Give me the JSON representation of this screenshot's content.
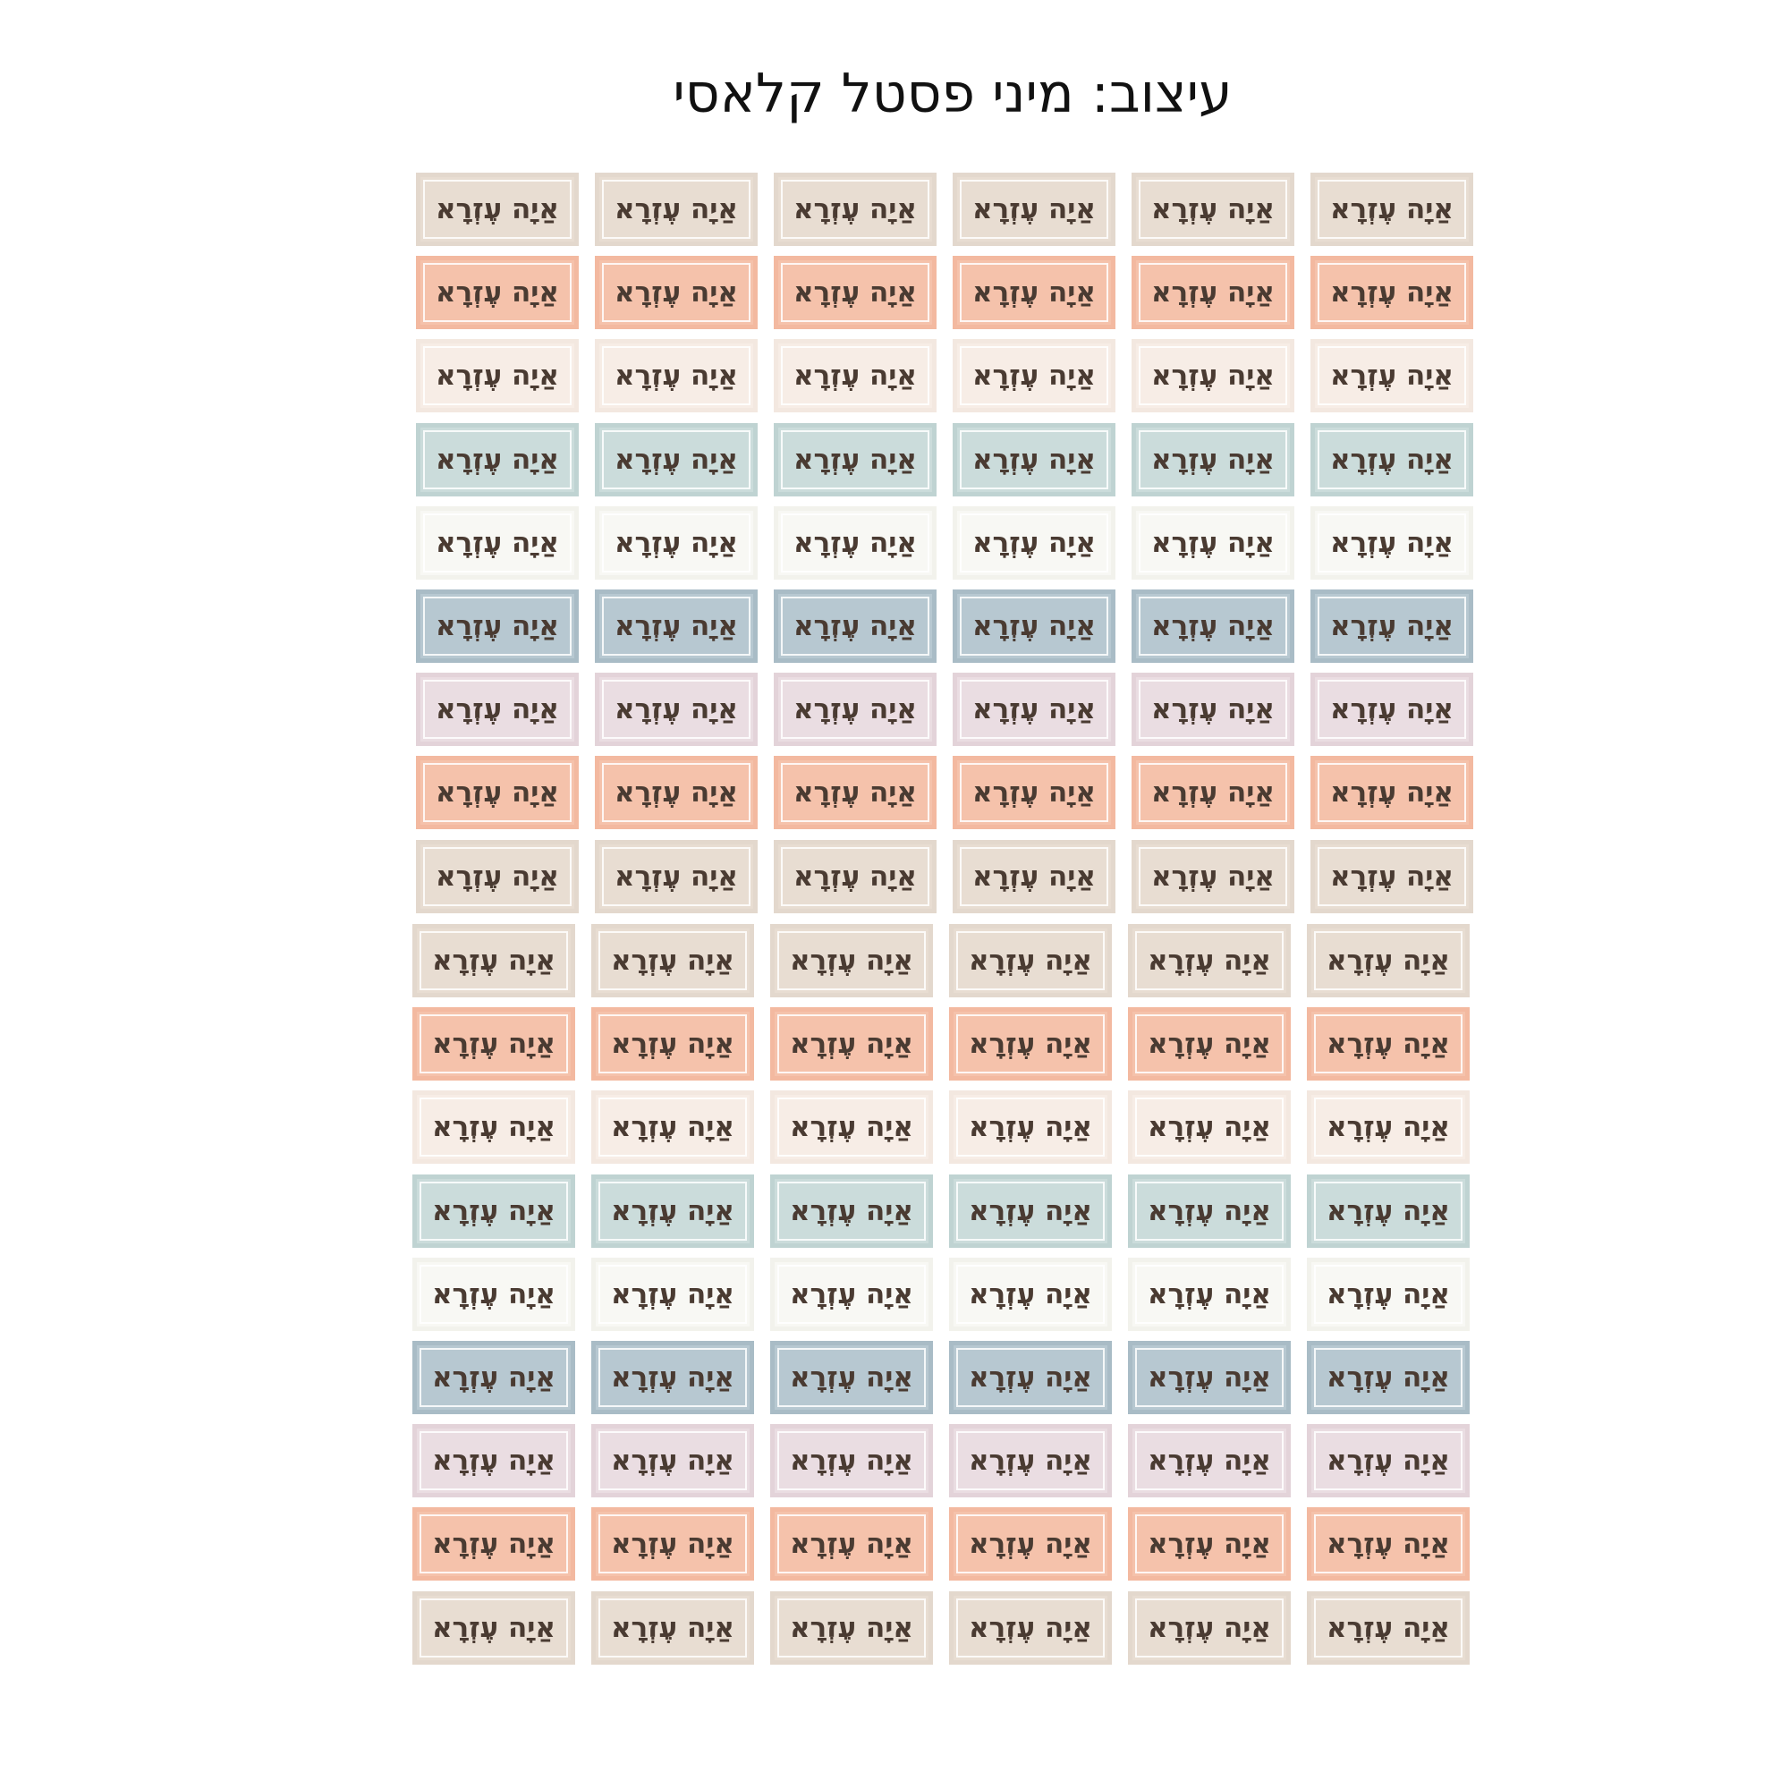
{
  "title": "עיצוב: מיני פסטל קלאסי",
  "label_text": "אַיָה עֶזְרָא",
  "columns": 6,
  "palette": [
    {
      "name": "beige",
      "fill": "#e8ddd2",
      "border": "#e3d8cd"
    },
    {
      "name": "peach",
      "fill": "#f5c2ab",
      "border": "#f3b9a0"
    },
    {
      "name": "cream",
      "fill": "#f7ede6",
      "border": "#f3e8e0"
    },
    {
      "name": "light-teal",
      "fill": "#cbdcdb",
      "border": "#bfd3d2"
    },
    {
      "name": "off-white",
      "fill": "#f8f8f4",
      "border": "#f2f2ec"
    },
    {
      "name": "blue-gray",
      "fill": "#b7c8d1",
      "border": "#a9bcc6"
    },
    {
      "name": "lilac",
      "fill": "#eadde2",
      "border": "#e3d3d9"
    },
    {
      "name": "peach",
      "fill": "#f5c2ab",
      "border": "#f3b9a0"
    },
    {
      "name": "beige",
      "fill": "#e8ddd2",
      "border": "#e3d8cd"
    }
  ],
  "rows": 18
}
